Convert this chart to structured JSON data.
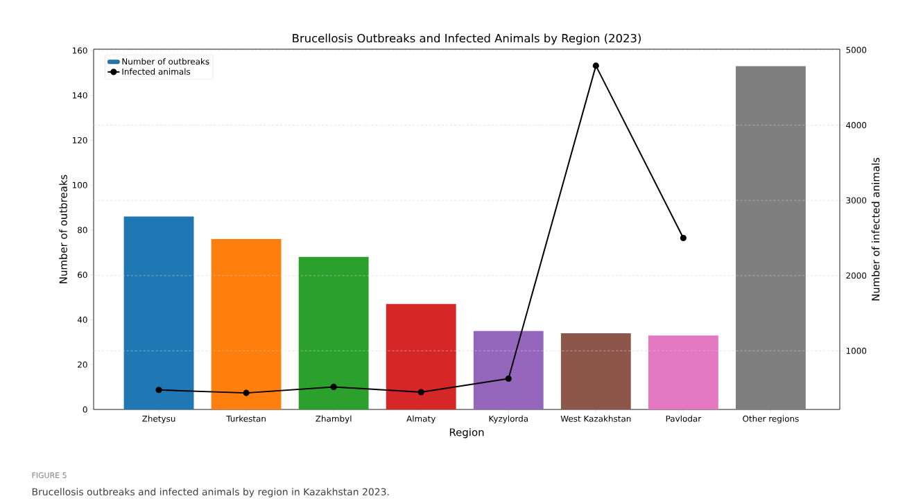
{
  "chart_data": {
    "type": "bar",
    "title": "Brucellosis Outbreaks and Infected Animals by Region (2023)",
    "xlabel": "Region",
    "ylabel": "Number of outbreaks",
    "y2label": "Number of infected animals",
    "categories": [
      "Zhetysu",
      "Turkestan",
      "Zhambyl",
      "Almaty",
      "Kyzylorda",
      "West Kazakhstan",
      "Pavlodar",
      "Other regions"
    ],
    "series": [
      {
        "name": "Number of outbreaks",
        "colors": [
          "#1f77b4",
          "#ff7f0e",
          "#2ca02c",
          "#d62728",
          "#9467bd",
          "#8c564b",
          "#e377c2",
          "#7f7f7f"
        ],
        "values": [
          86,
          76,
          68,
          47,
          35,
          34,
          33,
          153
        ]
      },
      {
        "name": "Infected animals",
        "type": "line",
        "axis": "y2",
        "color": "#000000",
        "marker": "circle",
        "values": [
          480,
          440,
          520,
          450,
          630,
          4790,
          2500,
          null
        ]
      }
    ],
    "ylim": [
      0,
      160.6
    ],
    "yticks": [
      0,
      20,
      40,
      60,
      80,
      100,
      120,
      140,
      160
    ],
    "y2lim": [
      220,
      5010
    ],
    "y2ticks": [
      1000,
      2000,
      3000,
      4000,
      5000
    ],
    "grid": "y",
    "legend": "top left",
    "annotations": [
      "FIGURE 5",
      "Brucellosis outbreaks and infected animals by region in Kazakhstan 2023."
    ]
  }
}
